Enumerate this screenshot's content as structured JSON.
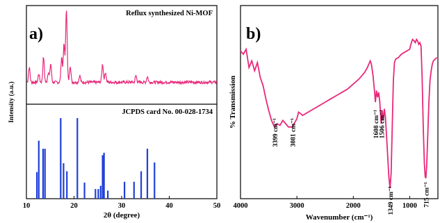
{
  "chart_data": [
    {
      "panel": "a)",
      "type": "line",
      "caption_top": "Reflux synthesized Ni-MOF",
      "caption_bottom": "JCPDS card No. 00-028-1734",
      "xlabel": "2θ (degree)",
      "ylabel": "Intensity (a.u.)",
      "xlim": [
        10,
        50
      ],
      "xticks": [
        "10",
        "20",
        "30",
        "40",
        "50"
      ],
      "series_color": "#e8287a",
      "bar_color": "#1f3fd8",
      "pattern": {
        "baseline": 0.08,
        "peaks": [
          {
            "x": 10.6,
            "h": 0.18
          },
          {
            "x": 12.6,
            "h": 0.1
          },
          {
            "x": 13.6,
            "h": 0.3
          },
          {
            "x": 14.6,
            "h": 0.12
          },
          {
            "x": 15.1,
            "h": 0.22
          },
          {
            "x": 17.4,
            "h": 0.3
          },
          {
            "x": 17.9,
            "h": 0.45
          },
          {
            "x": 18.4,
            "h": 0.88
          },
          {
            "x": 19.2,
            "h": 0.2
          },
          {
            "x": 21.2,
            "h": 0.08
          },
          {
            "x": 26.0,
            "h": 0.22
          },
          {
            "x": 26.6,
            "h": 0.12
          },
          {
            "x": 33.0,
            "h": 0.08
          },
          {
            "x": 35.4,
            "h": 0.07
          }
        ]
      },
      "reference_bars": [
        {
          "x": 12.2,
          "h": 0.33
        },
        {
          "x": 12.6,
          "h": 0.72
        },
        {
          "x": 13.5,
          "h": 0.62
        },
        {
          "x": 13.9,
          "h": 0.62
        },
        {
          "x": 17.2,
          "h": 1.0
        },
        {
          "x": 17.8,
          "h": 0.44
        },
        {
          "x": 18.5,
          "h": 0.34
        },
        {
          "x": 20.7,
          "h": 1.0
        },
        {
          "x": 22.2,
          "h": 0.2
        },
        {
          "x": 24.5,
          "h": 0.12
        },
        {
          "x": 25.1,
          "h": 0.12
        },
        {
          "x": 25.6,
          "h": 0.16
        },
        {
          "x": 26.0,
          "h": 0.54
        },
        {
          "x": 26.3,
          "h": 0.57
        },
        {
          "x": 27.1,
          "h": 0.1
        },
        {
          "x": 30.6,
          "h": 0.21
        },
        {
          "x": 32.6,
          "h": 0.21
        },
        {
          "x": 34.1,
          "h": 0.34
        },
        {
          "x": 35.4,
          "h": 0.62
        },
        {
          "x": 36.9,
          "h": 0.45
        }
      ]
    },
    {
      "panel": "b)",
      "type": "line",
      "xlabel": "Wavenumber (cm⁻¹)",
      "ylabel": "% Transmission",
      "xlim": [
        4000,
        500
      ],
      "xticks": [
        "4000",
        "3000",
        "2000",
        "1000"
      ],
      "series_color": "#e8287a",
      "annotations": [
        {
          "text": "3399 cm⁻¹",
          "x": 3399
        },
        {
          "text": "3081 cm⁻¹",
          "x": 3081
        },
        {
          "text": "1608 cm⁻¹",
          "x": 1608
        },
        {
          "text": "1506 cm⁻¹",
          "x": 1506
        },
        {
          "text": "1349 cm⁻¹",
          "x": 1349
        },
        {
          "text": "715 cm⁻¹",
          "x": 715
        }
      ],
      "spectrum": [
        [
          4000,
          0.86
        ],
        [
          3950,
          0.84
        ],
        [
          3900,
          0.87
        ],
        [
          3850,
          0.76
        ],
        [
          3800,
          0.8
        ],
        [
          3750,
          0.74
        ],
        [
          3700,
          0.79
        ],
        [
          3650,
          0.7
        ],
        [
          3600,
          0.65
        ],
        [
          3550,
          0.57
        ],
        [
          3500,
          0.5
        ],
        [
          3450,
          0.44
        ],
        [
          3399,
          0.4
        ],
        [
          3350,
          0.42
        ],
        [
          3300,
          0.41
        ],
        [
          3250,
          0.44
        ],
        [
          3200,
          0.42
        ],
        [
          3150,
          0.4
        ],
        [
          3081,
          0.4
        ],
        [
          3050,
          0.42
        ],
        [
          3000,
          0.45
        ],
        [
          2970,
          0.49
        ],
        [
          2930,
          0.48
        ],
        [
          2900,
          0.47
        ],
        [
          2850,
          0.48
        ],
        [
          2800,
          0.49
        ],
        [
          2700,
          0.51
        ],
        [
          2600,
          0.53
        ],
        [
          2500,
          0.55
        ],
        [
          2400,
          0.57
        ],
        [
          2300,
          0.59
        ],
        [
          2200,
          0.61
        ],
        [
          2100,
          0.63
        ],
        [
          2000,
          0.66
        ],
        [
          1900,
          0.69
        ],
        [
          1800,
          0.73
        ],
        [
          1750,
          0.76
        ],
        [
          1700,
          0.8
        ],
        [
          1680,
          0.78
        ],
        [
          1650,
          0.71
        ],
        [
          1625,
          0.62
        ],
        [
          1608,
          0.55
        ],
        [
          1590,
          0.62
        ],
        [
          1570,
          0.58
        ],
        [
          1550,
          0.61
        ],
        [
          1530,
          0.55
        ],
        [
          1506,
          0.42
        ],
        [
          1490,
          0.5
        ],
        [
          1470,
          0.44
        ],
        [
          1450,
          0.51
        ],
        [
          1430,
          0.46
        ],
        [
          1410,
          0.34
        ],
        [
          1390,
          0.22
        ],
        [
          1370,
          0.1
        ],
        [
          1349,
          0.03
        ],
        [
          1330,
          0.12
        ],
        [
          1310,
          0.4
        ],
        [
          1290,
          0.68
        ],
        [
          1270,
          0.79
        ],
        [
          1250,
          0.81
        ],
        [
          1200,
          0.82
        ],
        [
          1150,
          0.84
        ],
        [
          1100,
          0.85
        ],
        [
          1050,
          0.86
        ],
        [
          1000,
          0.87
        ],
        [
          980,
          0.9
        ],
        [
          950,
          0.93
        ],
        [
          920,
          0.92
        ],
        [
          900,
          0.91
        ],
        [
          880,
          0.93
        ],
        [
          860,
          0.92
        ],
        [
          840,
          0.9
        ],
        [
          820,
          0.91
        ],
        [
          800,
          0.89
        ],
        [
          780,
          0.7
        ],
        [
          760,
          0.4
        ],
        [
          740,
          0.18
        ],
        [
          725,
          0.1
        ],
        [
          715,
          0.09
        ],
        [
          700,
          0.16
        ],
        [
          680,
          0.35
        ],
        [
          660,
          0.55
        ],
        [
          640,
          0.68
        ],
        [
          620,
          0.74
        ],
        [
          600,
          0.78
        ],
        [
          580,
          0.8
        ],
        [
          550,
          0.81
        ],
        [
          520,
          0.82
        ]
      ]
    }
  ]
}
